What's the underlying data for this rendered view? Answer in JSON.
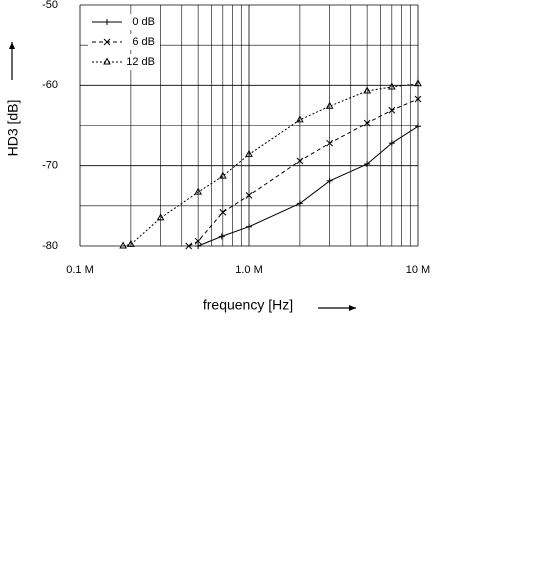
{
  "chart_data": {
    "type": "line",
    "x_label": "frequency [Hz]",
    "y_label": "HD3 [dB]",
    "log_x": true,
    "grid": true,
    "xlim": [
      0.1,
      10
    ],
    "xticks": [
      {
        "value": 0.1,
        "label": "0.1 M"
      },
      {
        "value": 1,
        "label": "1.0 M"
      },
      {
        "value": 10,
        "label": "10 M"
      }
    ],
    "x_minor_ticks": [
      0.2,
      0.3,
      0.4,
      0.5,
      0.6,
      0.7,
      0.8,
      0.9,
      2,
      3,
      4,
      5,
      6,
      7,
      8,
      9
    ],
    "ylim": [
      -80,
      -50
    ],
    "yticks": [
      -80,
      -70,
      -60,
      -50
    ],
    "y_minor_ticks": [
      -75,
      -65,
      -55
    ],
    "legend": "upper left",
    "series": [
      {
        "name": "0 dB",
        "color": "#000000",
        "dash": "solid",
        "marker": "plus",
        "x": [
          0.5,
          0.69,
          1,
          2,
          3,
          5,
          7,
          10
        ],
        "values": [
          -80,
          -78.8,
          -77.6,
          -74.7,
          -71.9,
          -69.8,
          -67.2,
          -65.1
        ]
      },
      {
        "name": "6 dB",
        "color": "#000000",
        "dash": "dashed",
        "marker": "x",
        "x": [
          0.44,
          0.5,
          0.7,
          1,
          2,
          3,
          5,
          7,
          10
        ],
        "values": [
          -80,
          -79.4,
          -75.8,
          -73.7,
          -69.4,
          -67.2,
          -64.7,
          -63.1,
          -61.7
        ]
      },
      {
        "name": "12 dB",
        "color": "#000000",
        "dash": "dotted",
        "marker": "triangle",
        "x": [
          0.18,
          0.2,
          0.3,
          0.5,
          0.7,
          1,
          2,
          3,
          5,
          7,
          10
        ],
        "values": [
          -80,
          -79.8,
          -76.5,
          -73.3,
          -71.3,
          -68.6,
          -64.3,
          -62.6,
          -60.7,
          -60.2,
          -59.8
        ]
      }
    ]
  }
}
